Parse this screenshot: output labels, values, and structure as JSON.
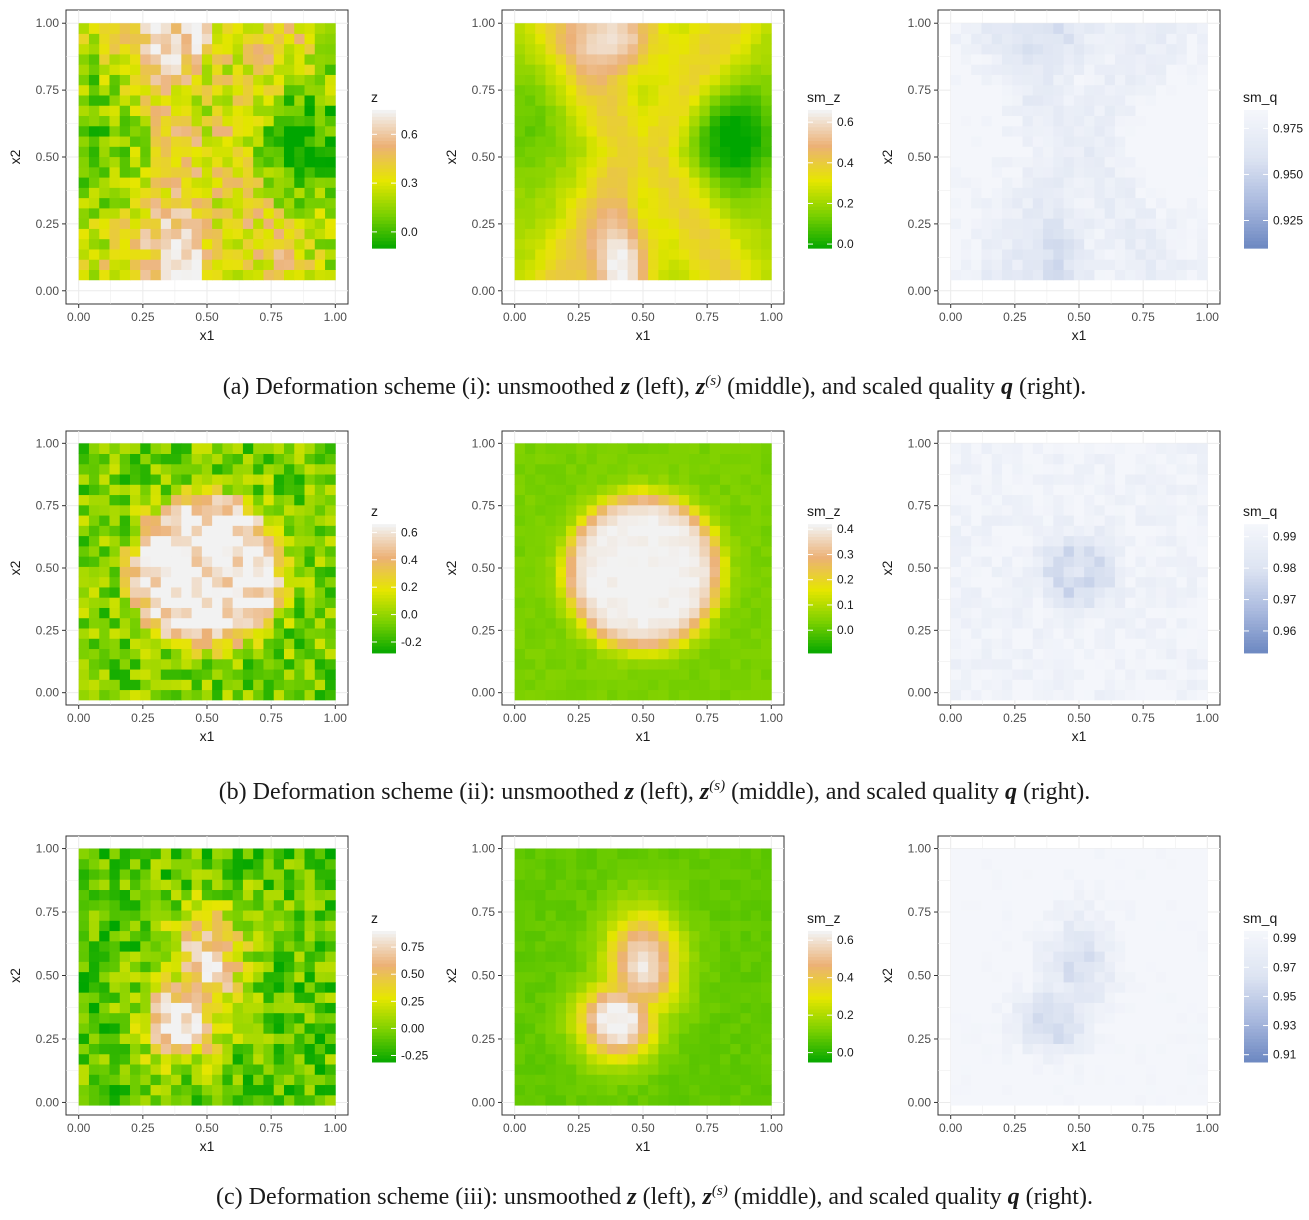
{
  "rows": [
    {
      "caption": {
        "prefix": "(a) Deformation scheme (i): unsmoothed",
        "z": "z",
        "left": "(left),",
        "zs": "z",
        "zs_sup": "(s)",
        "middle": "(middle), and scaled quality",
        "q": "q",
        "right": "(right)."
      },
      "panels": [
        {
          "kind": "z",
          "legend_title": "z",
          "legend_ticks": [
            "0.6",
            "0.3",
            "0.0"
          ],
          "legend_range": [
            -0.1,
            0.75
          ]
        },
        {
          "kind": "sm_z",
          "legend_title": "sm_z",
          "legend_ticks": [
            "0.6",
            "0.4",
            "0.2",
            "0.0"
          ],
          "legend_range": [
            -0.02,
            0.66
          ]
        },
        {
          "kind": "sm_q",
          "legend_title": "sm_q",
          "legend_ticks": [
            "0.975",
            "0.950",
            "0.925"
          ],
          "legend_range": [
            0.91,
            0.985
          ]
        }
      ]
    },
    {
      "caption": {
        "prefix": "(b) Deformation scheme (ii): unsmoothed",
        "z": "z",
        "left": "(left),",
        "zs": "z",
        "zs_sup": "(s)",
        "middle": "(middle), and scaled quality",
        "q": "q",
        "right": "(right)."
      },
      "panels": [
        {
          "kind": "z",
          "legend_title": "z",
          "legend_ticks": [
            "0.6",
            "0.4",
            "0.2",
            "0.0",
            "-0.2"
          ],
          "legend_range": [
            -0.28,
            0.66
          ]
        },
        {
          "kind": "sm_z",
          "legend_title": "sm_z",
          "legend_ticks": [
            "0.4",
            "0.3",
            "0.2",
            "0.1",
            "0.0"
          ],
          "legend_range": [
            -0.09,
            0.42
          ]
        },
        {
          "kind": "sm_q",
          "legend_title": "sm_q",
          "legend_ticks": [
            "0.99",
            "0.98",
            "0.97",
            "0.96"
          ],
          "legend_range": [
            0.953,
            0.994
          ]
        }
      ]
    },
    {
      "caption": {
        "prefix": "(c) Deformation scheme (iii): unsmoothed",
        "z": "z",
        "left": "(left),",
        "zs": "z",
        "zs_sup": "(s)",
        "middle": "(middle), and scaled quality",
        "q": "q",
        "right": "(right)."
      },
      "panels": [
        {
          "kind": "z",
          "legend_title": "z",
          "legend_ticks": [
            "0.75",
            "0.50",
            "0.25",
            "0.00",
            "-0.25"
          ],
          "legend_range": [
            -0.31,
            0.9
          ]
        },
        {
          "kind": "sm_z",
          "legend_title": "sm_z",
          "legend_ticks": [
            "0.6",
            "0.4",
            "0.2",
            "0.0"
          ],
          "legend_range": [
            -0.05,
            0.65
          ]
        },
        {
          "kind": "sm_q",
          "legend_title": "sm_q",
          "legend_ticks": [
            "0.99",
            "0.97",
            "0.95",
            "0.93",
            "0.91"
          ],
          "legend_range": [
            0.905,
            0.995
          ]
        }
      ]
    }
  ],
  "axes": {
    "xlabel": "x1",
    "ylabel": "x2",
    "xticks": [
      "0.00",
      "0.25",
      "0.50",
      "0.75",
      "1.00"
    ],
    "yticks": [
      "0.00",
      "0.25",
      "0.50",
      "0.75",
      "1.00"
    ]
  },
  "chart_data": [
    {
      "type": "heatmap",
      "panel": "a-left",
      "fill": "z",
      "grid": true,
      "x_range": [
        0,
        1
      ],
      "y_range": [
        0,
        1
      ],
      "xlabel": "x1",
      "ylabel": "x2",
      "colorbar_ticks": [
        0.0,
        0.3,
        0.6
      ],
      "colors": [
        "#00a600",
        "#e6e600",
        "#ecb176",
        "#f2f2f2"
      ],
      "description_values": "noisy field, high values near x1=0.4, x2=0.1"
    },
    {
      "type": "heatmap",
      "panel": "a-middle",
      "fill": "sm_z",
      "grid": true,
      "x_range": [
        0,
        1
      ],
      "y_range": [
        0,
        1
      ],
      "xlabel": "x1",
      "ylabel": "x2",
      "colorbar_ticks": [
        0.0,
        0.2,
        0.4,
        0.6
      ],
      "colors": [
        "#00a600",
        "#e6e600",
        "#ecb176",
        "#f2f2f2"
      ]
    },
    {
      "type": "heatmap",
      "panel": "a-right",
      "fill": "sm_q",
      "grid": true,
      "x_range": [
        0,
        1
      ],
      "y_range": [
        0,
        1
      ],
      "xlabel": "x1",
      "ylabel": "x2",
      "colorbar_ticks": [
        0.925,
        0.95,
        0.975
      ],
      "colors": [
        "#6a86c0",
        "#f4f6fb"
      ]
    },
    {
      "type": "heatmap",
      "panel": "b-left",
      "fill": "z",
      "grid": true,
      "x_range": [
        0,
        1
      ],
      "y_range": [
        0,
        1
      ],
      "xlabel": "x1",
      "ylabel": "x2",
      "colorbar_ticks": [
        -0.2,
        0.0,
        0.2,
        0.4,
        0.6
      ],
      "colors": [
        "#00a600",
        "#e6e600",
        "#ecb176",
        "#f2f2f2"
      ]
    },
    {
      "type": "heatmap",
      "panel": "b-middle",
      "fill": "sm_z",
      "grid": true,
      "x_range": [
        0,
        1
      ],
      "y_range": [
        0,
        1
      ],
      "xlabel": "x1",
      "ylabel": "x2",
      "colorbar_ticks": [
        0.0,
        0.1,
        0.2,
        0.3,
        0.4
      ],
      "colors": [
        "#00a600",
        "#e6e600",
        "#ecb176",
        "#f2f2f2"
      ]
    },
    {
      "type": "heatmap",
      "panel": "b-right",
      "fill": "sm_q",
      "grid": true,
      "x_range": [
        0,
        1
      ],
      "y_range": [
        0,
        1
      ],
      "xlabel": "x1",
      "ylabel": "x2",
      "colorbar_ticks": [
        0.96,
        0.97,
        0.98,
        0.99
      ],
      "colors": [
        "#6a86c0",
        "#f4f6fb"
      ]
    },
    {
      "type": "heatmap",
      "panel": "c-left",
      "fill": "z",
      "grid": true,
      "x_range": [
        0,
        1
      ],
      "y_range": [
        0,
        1
      ],
      "xlabel": "x1",
      "ylabel": "x2",
      "colorbar_ticks": [
        -0.25,
        0.0,
        0.25,
        0.5,
        0.75
      ],
      "colors": [
        "#00a600",
        "#e6e600",
        "#ecb176",
        "#f2f2f2"
      ]
    },
    {
      "type": "heatmap",
      "panel": "c-middle",
      "fill": "sm_z",
      "grid": true,
      "x_range": [
        0,
        1
      ],
      "y_range": [
        0,
        1
      ],
      "xlabel": "x1",
      "ylabel": "x2",
      "colorbar_ticks": [
        0.0,
        0.2,
        0.4,
        0.6
      ],
      "colors": [
        "#00a600",
        "#e6e600",
        "#ecb176",
        "#f2f2f2"
      ]
    },
    {
      "type": "heatmap",
      "panel": "c-right",
      "fill": "sm_q",
      "grid": true,
      "x_range": [
        0,
        1
      ],
      "y_range": [
        0,
        1
      ],
      "xlabel": "x1",
      "ylabel": "x2",
      "colorbar_ticks": [
        0.91,
        0.93,
        0.95,
        0.97,
        0.99
      ],
      "colors": [
        "#6a86c0",
        "#f4f6fb"
      ]
    }
  ]
}
